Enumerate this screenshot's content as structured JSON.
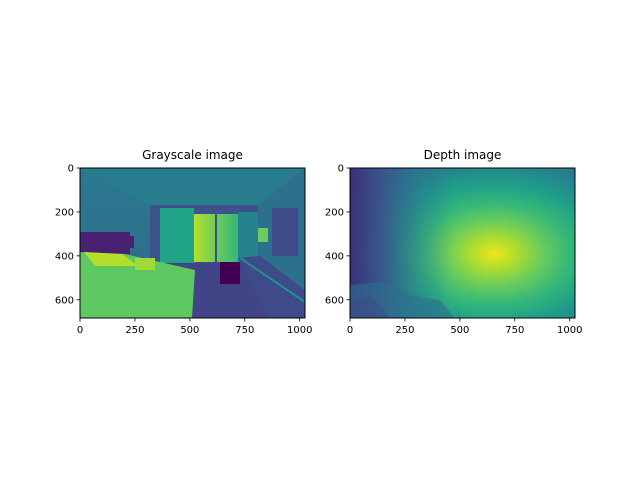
{
  "chart_data": [
    {
      "type": "heatmap",
      "title": "Grayscale image",
      "colormap": "viridis",
      "image_extent": {
        "width": 1024,
        "height": 683
      },
      "xlim": [
        0,
        1024
      ],
      "ylim": [
        683,
        0
      ],
      "x_ticks": [
        0,
        250,
        500,
        750,
        1000
      ],
      "y_ticks": [
        0,
        200,
        400,
        600
      ],
      "content": "grayscale photo of a hotel room (bed, window with curtains, desk, chair)"
    },
    {
      "type": "heatmap",
      "title": "Depth image",
      "colormap": "viridis",
      "image_extent": {
        "width": 1024,
        "height": 683
      },
      "xlim": [
        0,
        1024
      ],
      "ylim": [
        683,
        0
      ],
      "x_ticks": [
        0,
        250,
        500,
        750,
        1000
      ],
      "y_ticks": [
        0,
        200,
        400,
        600
      ],
      "content": "estimated depth map, brightest near center-right"
    }
  ]
}
